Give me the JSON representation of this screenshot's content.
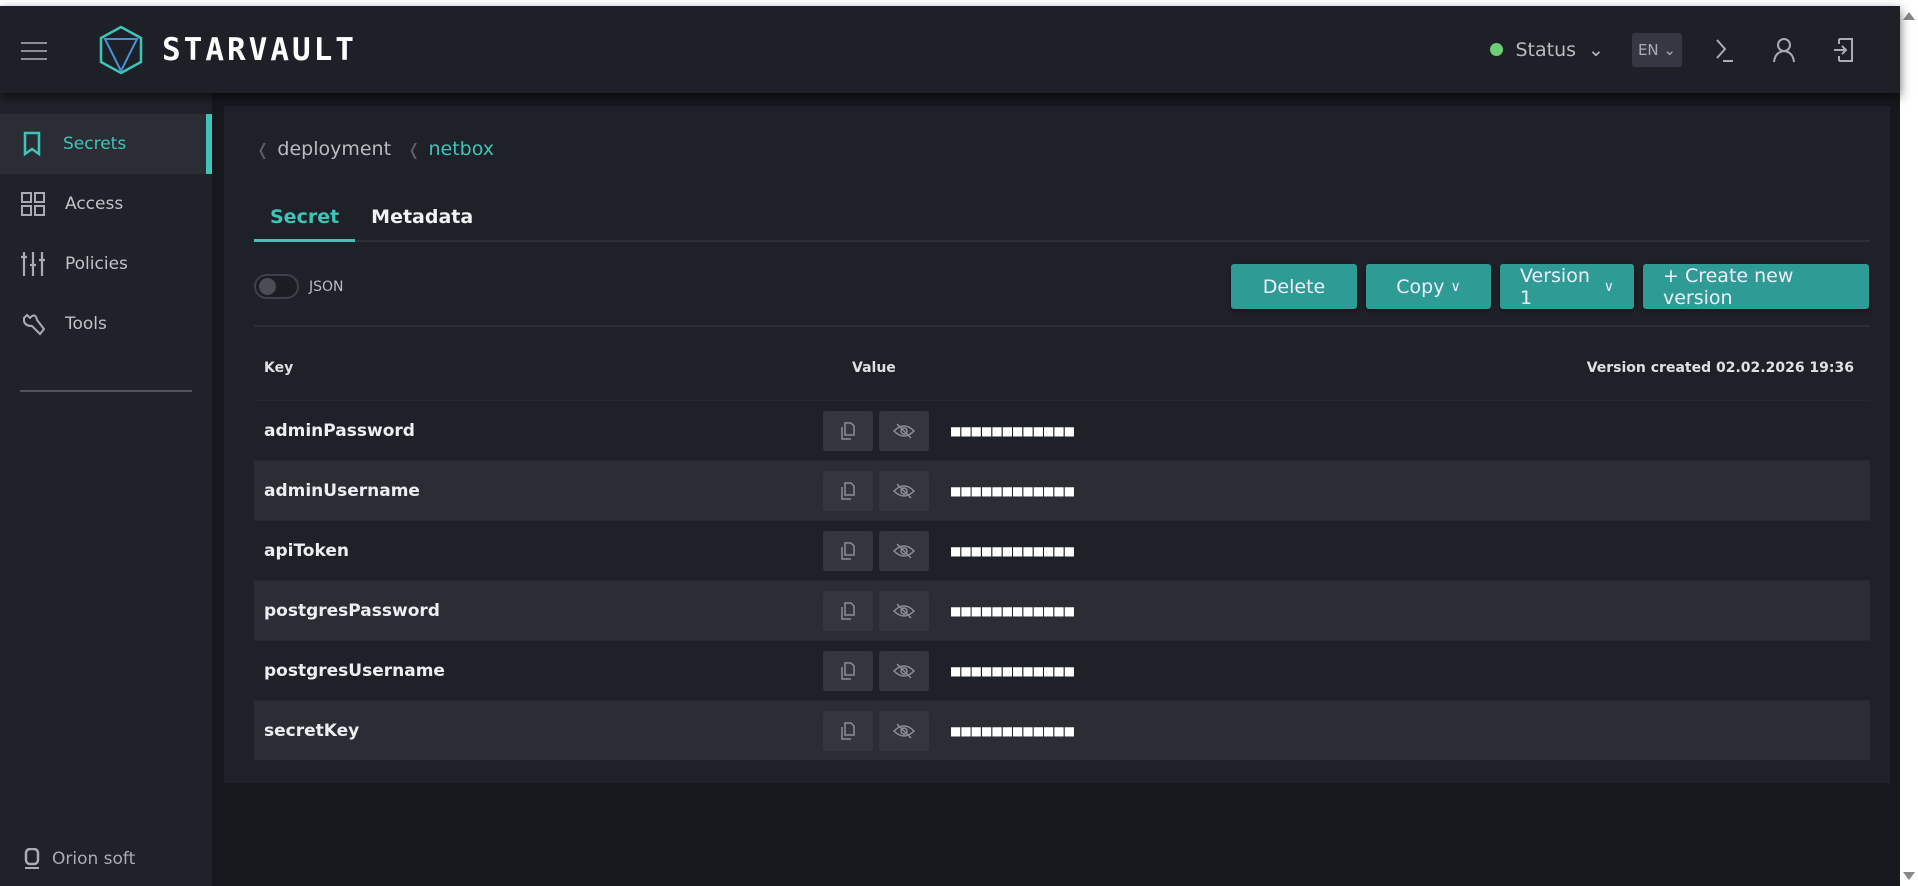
{
  "header": {
    "brand": "STARVAULT",
    "status_label": "Status",
    "status_color": "#6ccf73",
    "language": "EN"
  },
  "sidebar": {
    "items": [
      {
        "label": "Secrets",
        "icon": "bookmark-icon",
        "active": true
      },
      {
        "label": "Access",
        "icon": "grid-icon"
      },
      {
        "label": "Policies",
        "icon": "sliders-icon"
      },
      {
        "label": "Tools",
        "icon": "wrench-icon"
      }
    ],
    "footer": "Orion soft"
  },
  "breadcrumb": [
    "deployment",
    "netbox"
  ],
  "tabs": [
    {
      "label": "Secret",
      "active": true
    },
    {
      "label": "Metadata"
    }
  ],
  "toggle": {
    "label": "JSON",
    "on": false
  },
  "actions": {
    "delete": "Delete",
    "copy": "Copy",
    "version": "Version 1",
    "create": "+ Create new version"
  },
  "table": {
    "col_key": "Key",
    "col_value": "Value",
    "version_created": "Version created 02.02.2026 19:36",
    "rows": [
      {
        "key": "adminPassword",
        "value": "■■■■■■■■■■■■"
      },
      {
        "key": "adminUsername",
        "value": "■■■■■■■■■■■■"
      },
      {
        "key": "apiToken",
        "value": "■■■■■■■■■■■■"
      },
      {
        "key": "postgresPassword",
        "value": "■■■■■■■■■■■■"
      },
      {
        "key": "postgresUsername",
        "value": "■■■■■■■■■■■■"
      },
      {
        "key": "secretKey",
        "value": "■■■■■■■■■■■■"
      }
    ]
  },
  "colors": {
    "accent": "#3fc4b8",
    "button": "#2e9b94"
  }
}
